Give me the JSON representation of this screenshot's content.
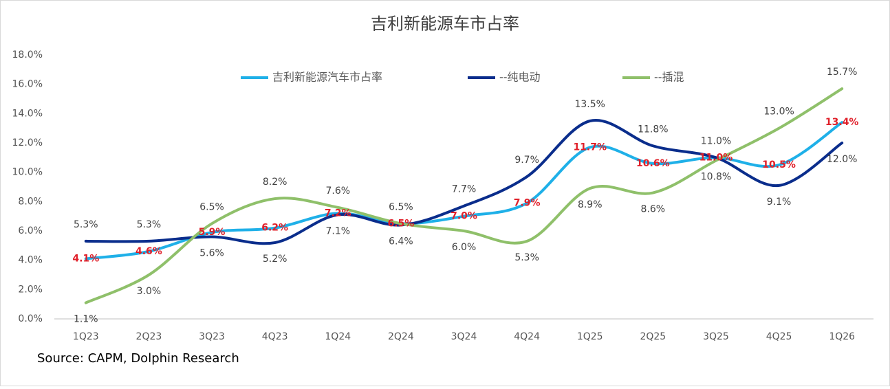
{
  "chart_data": {
    "type": "line",
    "title": "吉利新能源车市占率",
    "categories": [
      "1Q23",
      "2Q23",
      "3Q23",
      "4Q23",
      "1Q24",
      "2Q24",
      "3Q24",
      "4Q24",
      "1Q25",
      "2Q25",
      "3Q25",
      "4Q25",
      "1Q26"
    ],
    "series": [
      {
        "name": "吉利新能源汽车市占率",
        "color": "#1fb0e8",
        "label_color": "#e0202a",
        "values": [
          4.1,
          4.6,
          5.9,
          6.2,
          7.2,
          6.5,
          7.0,
          7.9,
          11.7,
          10.6,
          11.0,
          10.5,
          13.4
        ],
        "value_labels": [
          "4.1%",
          "4.6%",
          "5.9%",
          "6.2%",
          "7.2%",
          "6.5%",
          "7.0%",
          "7.9%",
          "11.7%",
          "10.6%",
          "11.0%",
          "10.5%",
          "13.4%"
        ]
      },
      {
        "name": "--纯电动",
        "color": "#0a2d8c",
        "label_color": "#404040",
        "values": [
          5.3,
          5.3,
          5.6,
          5.2,
          7.1,
          6.4,
          7.7,
          9.7,
          13.5,
          11.8,
          11.0,
          9.1,
          12.0
        ],
        "value_labels": [
          "5.3%",
          "5.3%",
          "5.6%",
          "5.2%",
          "7.1%",
          "6.4%",
          "7.7%",
          "9.7%",
          "13.5%",
          "11.8%",
          "11.0%",
          "9.1%",
          "12.0%"
        ]
      },
      {
        "name": "--插混",
        "color": "#8fc06a",
        "label_color": "#404040",
        "values": [
          1.1,
          3.0,
          6.5,
          8.2,
          7.6,
          6.5,
          6.0,
          5.3,
          8.9,
          8.6,
          10.8,
          13.0,
          15.7
        ],
        "value_labels": [
          "1.1%",
          "3.0%",
          "6.5%",
          "8.2%",
          "7.6%",
          "6.5%",
          "6.0%",
          "5.3%",
          "8.9%",
          "8.6%",
          "10.8%",
          "13.0%",
          "15.7%"
        ]
      }
    ],
    "ylim": [
      0,
      18
    ],
    "yticks": [
      {
        "value": 0,
        "label": "0.0%"
      },
      {
        "value": 2,
        "label": "2.0%"
      },
      {
        "value": 4,
        "label": "4.0%"
      },
      {
        "value": 6,
        "label": "6.0%"
      },
      {
        "value": 8,
        "label": "8.0%"
      },
      {
        "value": 10,
        "label": "10.0%"
      },
      {
        "value": 12,
        "label": "12.0%"
      },
      {
        "value": 14,
        "label": "14.0%"
      },
      {
        "value": 16,
        "label": "16.0%"
      },
      {
        "value": 18,
        "label": "18.0%"
      }
    ],
    "grid": false,
    "source": "Source: CAPM, Dolphin Research"
  }
}
